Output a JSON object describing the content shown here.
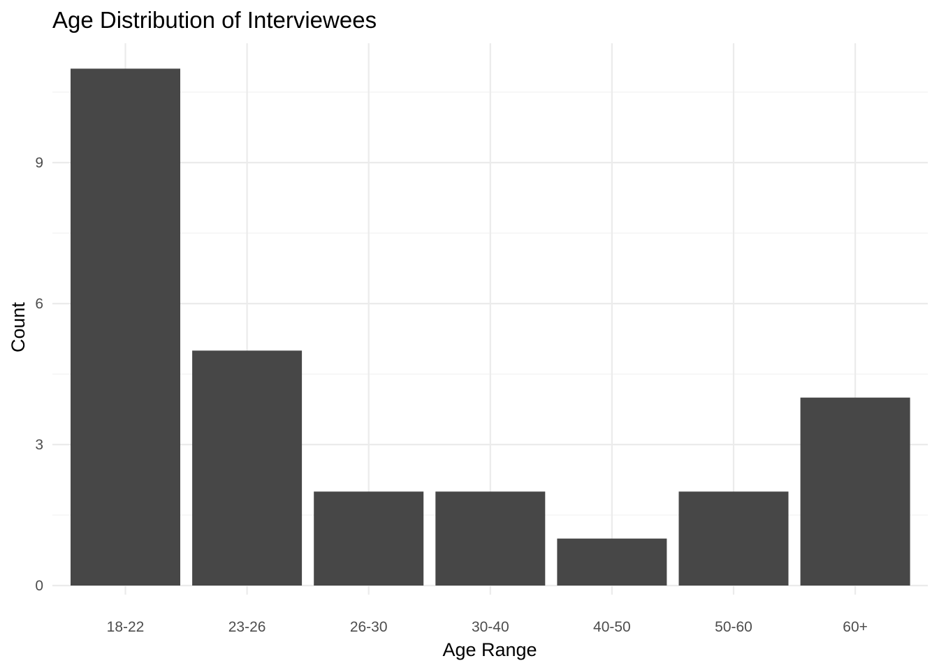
{
  "chart_data": {
    "type": "bar",
    "title": "Age Distribution of Interviewees",
    "xlabel": "Age Range",
    "ylabel": "Count",
    "categories": [
      "18-22",
      "23-26",
      "26-30",
      "30-40",
      "40-50",
      "50-60",
      "60+"
    ],
    "values": [
      11,
      5,
      2,
      2,
      1,
      2,
      4
    ],
    "ylim": [
      0,
      11.55
    ],
    "yticks": [
      0,
      3,
      6,
      9
    ],
    "ytick_labels": [
      "0",
      "3",
      "6",
      "9"
    ],
    "grid": true,
    "legend": "none",
    "colors": {
      "bar": "#474747",
      "grid_major": "#ebebeb",
      "grid_minor": "#f2f2f2",
      "tick_text": "#4d4d4d",
      "title_text": "#000000",
      "background": "#ffffff"
    }
  }
}
